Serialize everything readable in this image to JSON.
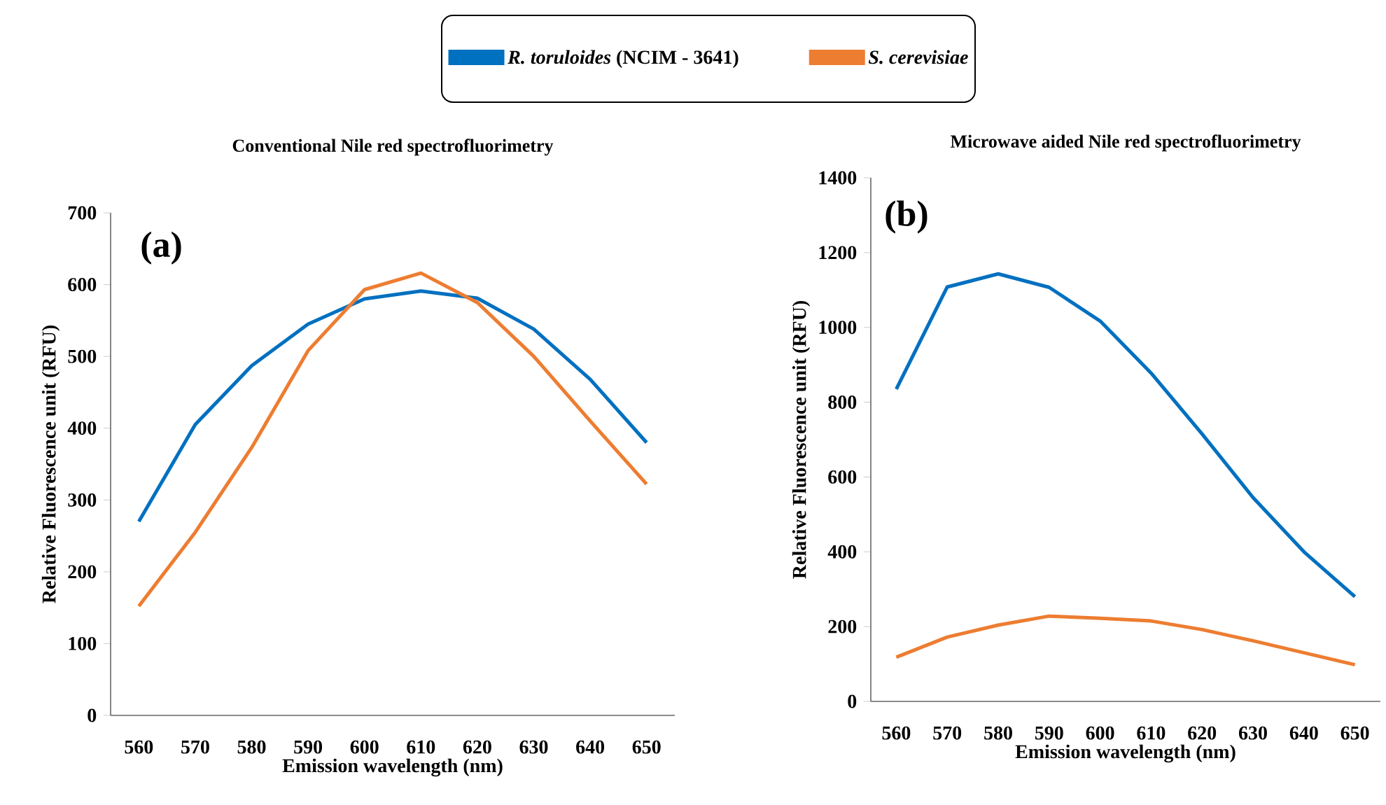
{
  "chart_data": [
    {
      "type": "line",
      "title": "Conventional Nile red spectrofluorimetry",
      "xlabel": "Emission wavelength (nm)",
      "ylabel": "Relative Fluorescence unit (RFU)",
      "annotations": [
        "(a)"
      ],
      "categories": [
        "560",
        "570",
        "580",
        "590",
        "600",
        "610",
        "620",
        "630",
        "640",
        "650"
      ],
      "ylim": [
        0,
        700
      ],
      "yticks": [
        0,
        100,
        200,
        300,
        400,
        500,
        600,
        700
      ],
      "legend": "top",
      "series": [
        {
          "name": "*R. toruloides* (NCIM - 3641)",
          "color": "#0070c0",
          "values": [
            270,
            405,
            487,
            545,
            580,
            591,
            581,
            538,
            468,
            380
          ]
        },
        {
          "name": "*S. cerevisiae*",
          "color": "#ed7d31",
          "values": [
            152,
            255,
            373,
            508,
            593,
            616,
            575,
            500,
            410,
            322
          ]
        }
      ]
    },
    {
      "type": "line",
      "title": "Microwave aided Nile red spectrofluorimetry",
      "xlabel": "Emission wavelength (nm)",
      "ylabel": "Relative Fluorescence unit (RFU)",
      "annotations": [
        "(b)"
      ],
      "categories": [
        "560",
        "570",
        "580",
        "590",
        "600",
        "610",
        "620",
        "630",
        "640",
        "650"
      ],
      "ylim": [
        0,
        1400
      ],
      "yticks": [
        0,
        200,
        400,
        600,
        800,
        1000,
        1200,
        1400
      ],
      "series": [
        {
          "color": "#0070c0",
          "values": [
            835,
            1108,
            1143,
            1107,
            1017,
            878,
            715,
            545,
            400,
            280
          ]
        },
        {
          "color": "#ed7d31",
          "values": [
            118,
            172,
            204,
            228,
            222,
            215,
            192,
            162,
            130,
            98
          ]
        }
      ]
    }
  ]
}
